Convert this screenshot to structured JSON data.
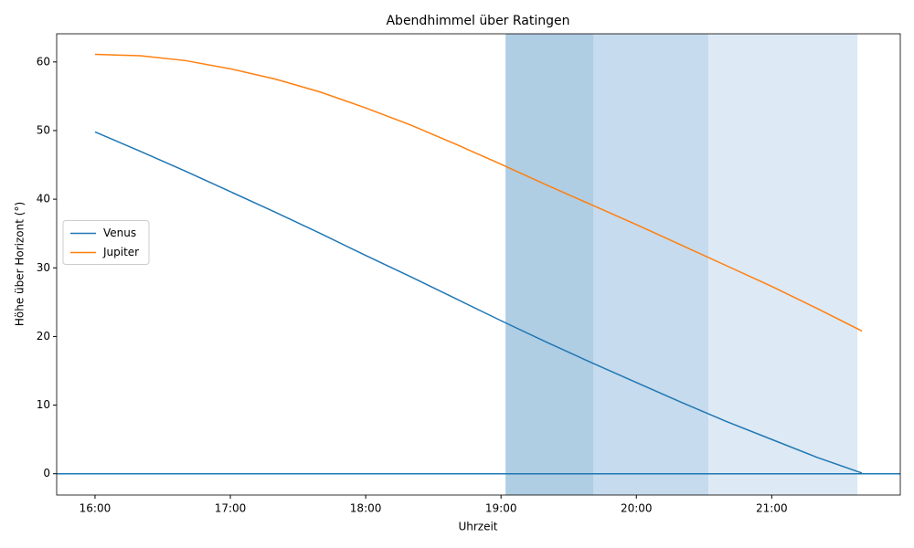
{
  "chart_data": {
    "type": "line",
    "title": "Abendhimmel über Ratingen",
    "x_label": "Uhrzeit",
    "y_label": "Höhe über Horizont (°)",
    "x": [
      "16:00",
      "16:20",
      "16:40",
      "17:00",
      "17:20",
      "17:40",
      "18:00",
      "18:20",
      "18:40",
      "19:00",
      "19:20",
      "19:40",
      "20:00",
      "20:20",
      "20:40",
      "21:00",
      "21:20",
      "21:40"
    ],
    "series": [
      {
        "name": "Venus",
        "color": "#1f77b4",
        "values": [
          49.8,
          47.0,
          44.1,
          41.1,
          38.1,
          35.0,
          31.8,
          28.7,
          25.5,
          22.3,
          19.2,
          16.2,
          13.3,
          10.4,
          7.6,
          5.0,
          2.4,
          0.1
        ]
      },
      {
        "name": "Jupiter",
        "color": "#ff7f0e",
        "values": [
          61.1,
          60.9,
          60.2,
          59.0,
          57.5,
          55.6,
          53.3,
          50.8,
          48.0,
          45.1,
          42.1,
          39.2,
          36.3,
          33.3,
          30.3,
          27.3,
          24.1,
          20.8
        ]
      }
    ],
    "spans": [
      {
        "start": "19:02",
        "end": "19:41",
        "color": "#afcde3"
      },
      {
        "start": "19:41",
        "end": "20:32",
        "color": "#c6dbed"
      },
      {
        "start": "20:32",
        "end": "21:38",
        "color": "#dde9f4"
      }
    ],
    "hlines": [
      {
        "value": 0,
        "color": "#1f77b4"
      }
    ],
    "xlim": [
      "15:43",
      "21:57"
    ],
    "xticks": [
      "16:00",
      "17:00",
      "18:00",
      "19:00",
      "20:00",
      "21:00"
    ],
    "ylim": [
      -3.1,
      64.1
    ],
    "yticks": [
      0,
      10,
      20,
      30,
      40,
      50,
      60
    ],
    "legend": "center left"
  }
}
